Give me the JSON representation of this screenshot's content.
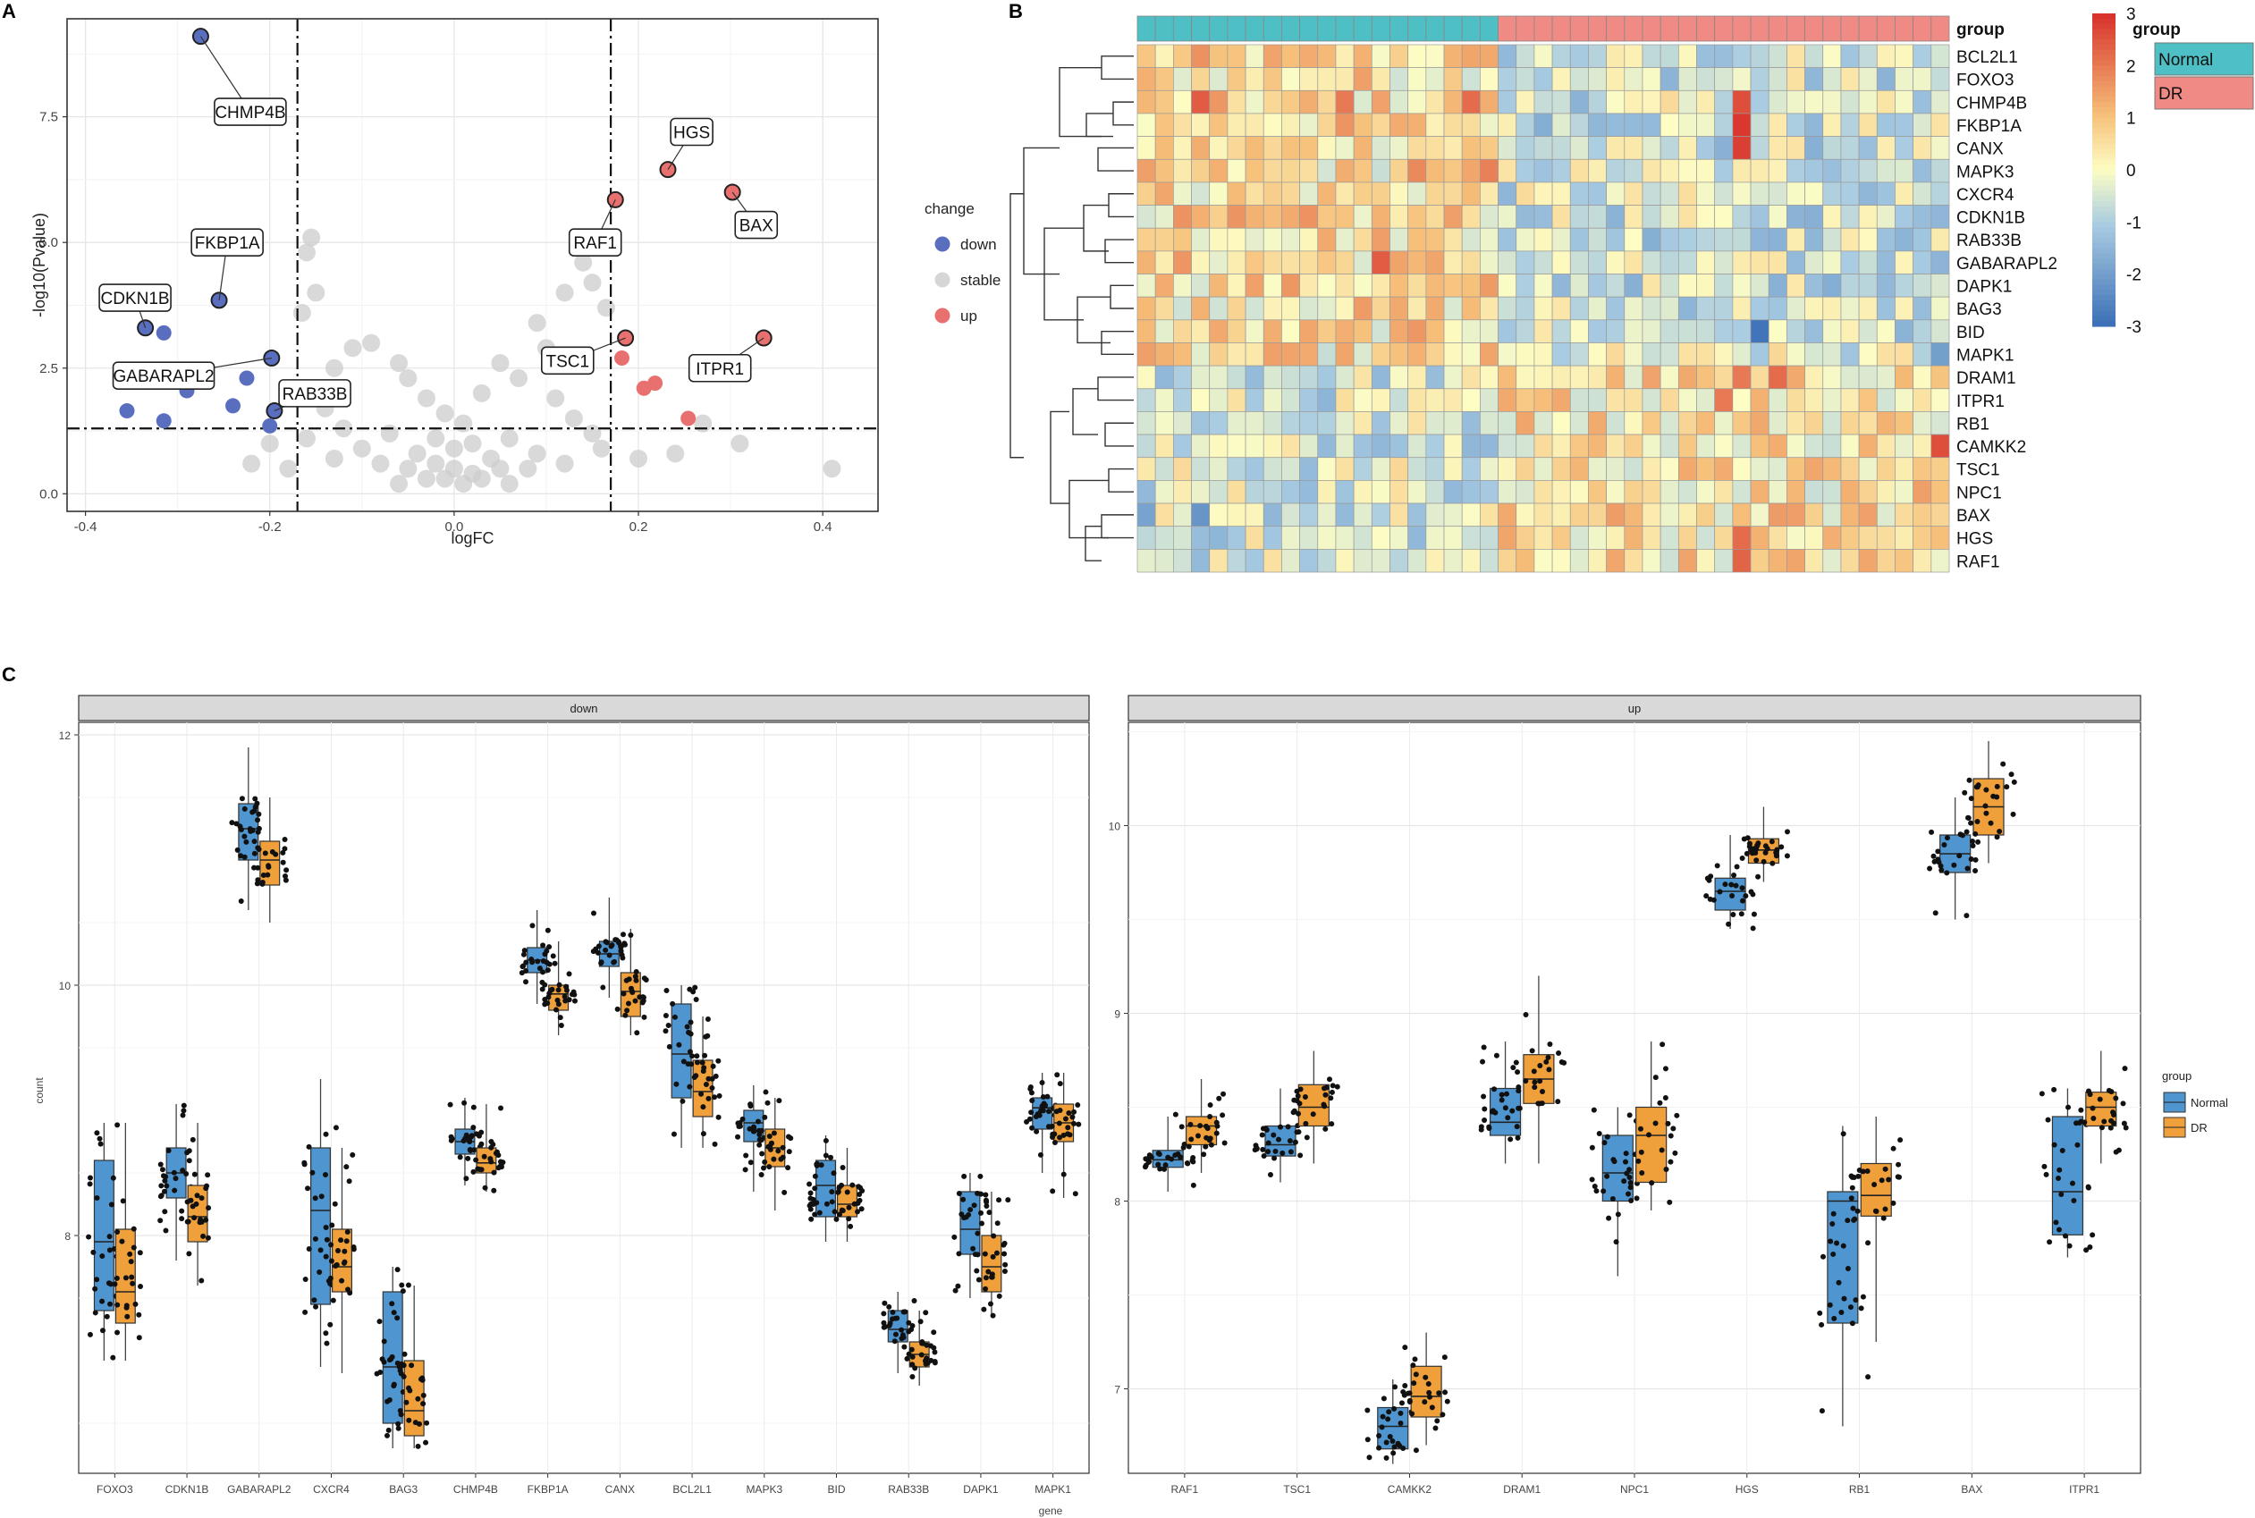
{
  "panels": {
    "a": "A",
    "b": "B",
    "c": "C"
  },
  "chart_data": [
    {
      "type": "scatter",
      "panel": "A",
      "title": "",
      "xlabel": "logFC",
      "ylabel": "-log10(Pvalue)",
      "xlim": [
        -0.4,
        0.45
      ],
      "ylim": [
        -0.3,
        9.4
      ],
      "x_ticks": [
        "-0.4",
        "-0.2",
        "0.0",
        "0.2",
        "0.4"
      ],
      "y_ticks": [
        "0.0",
        "2.5",
        "5.0",
        "7.5"
      ],
      "thresholds": {
        "logFC": [
          -0.17,
          0.17
        ],
        "neglog10p": 1.3
      },
      "legend": {
        "title": "change",
        "entries": [
          "down",
          "stable",
          "up"
        ],
        "position": "right"
      },
      "colors": {
        "down": "#5a6ec0",
        "stable": "#cccccc",
        "up": "#e8706f"
      },
      "down_points": [
        {
          "x": -0.275,
          "y": 9.1,
          "label": "CHMP4B"
        },
        {
          "x": -0.255,
          "y": 3.85,
          "label": "FKBP1A"
        },
        {
          "x": -0.335,
          "y": 3.3,
          "label": "CDKN1B"
        },
        {
          "x": -0.198,
          "y": 2.7,
          "label": "GABARAPL2"
        },
        {
          "x": -0.195,
          "y": 1.65,
          "label": "RAB33B"
        },
        {
          "x": -0.315,
          "y": 3.2
        },
        {
          "x": -0.29,
          "y": 2.05
        },
        {
          "x": -0.355,
          "y": 1.65
        },
        {
          "x": -0.315,
          "y": 1.45
        },
        {
          "x": -0.24,
          "y": 1.75
        },
        {
          "x": -0.225,
          "y": 2.3
        },
        {
          "x": -0.2,
          "y": 1.35
        }
      ],
      "up_points": [
        {
          "x": 0.232,
          "y": 6.45,
          "label": "HGS"
        },
        {
          "x": 0.302,
          "y": 6.0,
          "label": "BAX"
        },
        {
          "x": 0.175,
          "y": 5.85,
          "label": "RAF1"
        },
        {
          "x": 0.186,
          "y": 3.1,
          "label": "TSC1"
        },
        {
          "x": 0.336,
          "y": 3.1,
          "label": "ITPR1"
        },
        {
          "x": 0.182,
          "y": 2.7
        },
        {
          "x": 0.218,
          "y": 2.2
        },
        {
          "x": 0.206,
          "y": 2.1
        },
        {
          "x": 0.254,
          "y": 1.5
        }
      ],
      "stable_points": [
        {
          "x": -0.155,
          "y": 5.1
        },
        {
          "x": -0.16,
          "y": 4.8
        },
        {
          "x": -0.15,
          "y": 4.0
        },
        {
          "x": -0.165,
          "y": 3.6
        },
        {
          "x": 0.14,
          "y": 4.6
        },
        {
          "x": 0.15,
          "y": 4.2
        },
        {
          "x": 0.12,
          "y": 4.0
        },
        {
          "x": 0.165,
          "y": 3.7
        },
        {
          "x": 0.09,
          "y": 3.4
        },
        {
          "x": 0.1,
          "y": 2.9
        },
        {
          "x": -0.09,
          "y": 3.0
        },
        {
          "x": -0.06,
          "y": 2.6
        },
        {
          "x": -0.11,
          "y": 2.9
        },
        {
          "x": -0.13,
          "y": 2.5
        },
        {
          "x": 0.05,
          "y": 2.6
        },
        {
          "x": 0.07,
          "y": 2.3
        },
        {
          "x": -0.05,
          "y": 2.3
        },
        {
          "x": 0.03,
          "y": 2.0
        },
        {
          "x": -0.03,
          "y": 1.9
        },
        {
          "x": -0.01,
          "y": 1.6
        },
        {
          "x": 0.01,
          "y": 1.4
        },
        {
          "x": 0.11,
          "y": 1.9
        },
        {
          "x": 0.13,
          "y": 1.5
        },
        {
          "x": -0.14,
          "y": 1.7
        },
        {
          "x": -0.12,
          "y": 1.3
        },
        {
          "x": 0.15,
          "y": 1.2
        },
        {
          "x": -0.16,
          "y": 1.1
        },
        {
          "x": 0.16,
          "y": 0.9
        },
        {
          "x": -0.07,
          "y": 1.2
        },
        {
          "x": 0.06,
          "y": 1.1
        },
        {
          "x": -0.1,
          "y": 0.9
        },
        {
          "x": 0.09,
          "y": 0.8
        },
        {
          "x": -0.04,
          "y": 0.8
        },
        {
          "x": 0.04,
          "y": 0.7
        },
        {
          "x": -0.02,
          "y": 0.6
        },
        {
          "x": 0.0,
          "y": 0.5
        },
        {
          "x": 0.02,
          "y": 0.4
        },
        {
          "x": -0.01,
          "y": 0.3
        },
        {
          "x": 0.01,
          "y": 0.2
        },
        {
          "x": -0.03,
          "y": 0.3
        },
        {
          "x": 0.03,
          "y": 0.3
        },
        {
          "x": -0.05,
          "y": 0.5
        },
        {
          "x": 0.05,
          "y": 0.5
        },
        {
          "x": -0.08,
          "y": 0.6
        },
        {
          "x": 0.08,
          "y": 0.5
        },
        {
          "x": -0.13,
          "y": 0.7
        },
        {
          "x": 0.12,
          "y": 0.6
        },
        {
          "x": -0.18,
          "y": 0.5
        },
        {
          "x": 0.2,
          "y": 0.7
        },
        {
          "x": 0.24,
          "y": 0.8
        },
        {
          "x": -0.22,
          "y": 0.6
        },
        {
          "x": 0.27,
          "y": 1.4
        },
        {
          "x": 0.31,
          "y": 1.0
        },
        {
          "x": 0.41,
          "y": 0.5
        },
        {
          "x": -0.2,
          "y": 1.0
        },
        {
          "x": 0.0,
          "y": 0.9
        },
        {
          "x": -0.02,
          "y": 1.1
        },
        {
          "x": 0.02,
          "y": 1.0
        },
        {
          "x": -0.06,
          "y": 0.2
        },
        {
          "x": 0.06,
          "y": 0.2
        }
      ]
    },
    {
      "type": "heatmap",
      "panel": "B",
      "annotation_title": "group",
      "legend": {
        "title": "group",
        "entries": [
          "Normal",
          "DR"
        ],
        "position": "right"
      },
      "group_colors": {
        "Normal": "#4ebfc4",
        "DR": "#f08a84"
      },
      "color_scale": {
        "min": -3,
        "max": 3,
        "ticks": [
          "3",
          "2",
          "1",
          "0",
          "-1",
          "-2",
          "-3"
        ],
        "low": "#3b6fb6",
        "mid": "#fdfdc4",
        "high": "#d7302b"
      },
      "n_normal": 20,
      "n_dr": 25,
      "genes": [
        "BCL2L1",
        "FOXO3",
        "CHMP4B",
        "FKBP1A",
        "CANX",
        "MAPK3",
        "CXCR4",
        "CDKN1B",
        "RAB33B",
        "GABARAPL2",
        "DAPK1",
        "BAG3",
        "BID",
        "MAPK1",
        "DRAM1",
        "ITPR1",
        "RB1",
        "CAMKK2",
        "TSC1",
        "NPC1",
        "BAX",
        "HGS",
        "RAF1"
      ],
      "row_bias": [
        0.6,
        0.5,
        0.5,
        0.6,
        0.6,
        0.4,
        0.5,
        0.6,
        0.6,
        0.6,
        0.6,
        0.5,
        0.5,
        0.4,
        -0.5,
        -0.5,
        -0.5,
        -0.4,
        -0.4,
        -0.4,
        -0.5,
        -0.5,
        -0.5
      ],
      "notes": "row-scaled expression z-scores; down-regulated genes higher in Normal, up-regulated genes higher in DR"
    },
    {
      "type": "box",
      "panel": "C",
      "xlabel": "gene",
      "ylabel": "count",
      "legend": {
        "title": "group",
        "entries": [
          "Normal",
          "DR"
        ],
        "position": "right"
      },
      "colors": {
        "Normal": "#4f95cf",
        "DR": "#f0a03b"
      },
      "facets": [
        {
          "name": "down",
          "ylim": [
            6.1,
            12.1
          ],
          "y_ticks": [
            "8",
            "10",
            "12"
          ],
          "genes": [
            {
              "gene": "FOXO3",
              "Normal": [
                7.0,
                7.4,
                7.95,
                8.6,
                8.9
              ],
              "DR": [
                7.0,
                7.3,
                7.55,
                8.05,
                8.9
              ]
            },
            {
              "gene": "CDKN1B",
              "Normal": [
                7.8,
                8.3,
                8.5,
                8.7,
                9.05
              ],
              "DR": [
                7.6,
                7.95,
                8.15,
                8.4,
                8.9
              ]
            },
            {
              "gene": "GABARAPL2",
              "Normal": [
                10.6,
                11.0,
                11.25,
                11.45,
                11.9
              ],
              "DR": [
                10.5,
                10.8,
                11.0,
                11.15,
                11.5
              ]
            },
            {
              "gene": "CXCR4",
              "Normal": [
                6.95,
                7.45,
                8.2,
                8.7,
                9.25
              ],
              "DR": [
                6.9,
                7.55,
                7.75,
                8.05,
                8.7
              ]
            },
            {
              "gene": "BAG3",
              "Normal": [
                6.3,
                6.5,
                6.95,
                7.55,
                7.75
              ],
              "DR": [
                6.3,
                6.4,
                6.6,
                7.0,
                7.6
              ]
            },
            {
              "gene": "CHMP4B",
              "Normal": [
                8.4,
                8.65,
                8.75,
                8.85,
                9.1
              ],
              "DR": [
                8.35,
                8.5,
                8.58,
                8.7,
                9.05
              ]
            },
            {
              "gene": "FKBP1A",
              "Normal": [
                9.85,
                10.1,
                10.2,
                10.3,
                10.6
              ],
              "DR": [
                9.6,
                9.8,
                9.93,
                10.0,
                10.35
              ]
            },
            {
              "gene": "CANX",
              "Normal": [
                9.9,
                10.15,
                10.25,
                10.35,
                10.7
              ],
              "DR": [
                9.6,
                9.75,
                9.95,
                10.1,
                10.45
              ]
            },
            {
              "gene": "BCL2L1",
              "Normal": [
                8.7,
                9.1,
                9.45,
                9.85,
                10.0
              ],
              "DR": [
                8.7,
                8.95,
                9.15,
                9.4,
                9.75
              ]
            },
            {
              "gene": "MAPK3",
              "Normal": [
                8.35,
                8.75,
                8.9,
                9.0,
                9.2
              ],
              "DR": [
                8.2,
                8.55,
                8.7,
                8.85,
                9.1
              ]
            },
            {
              "gene": "BID",
              "Normal": [
                7.95,
                8.15,
                8.4,
                8.6,
                8.8
              ],
              "DR": [
                7.95,
                8.15,
                8.25,
                8.4,
                8.7
              ]
            },
            {
              "gene": "RAB33B",
              "Normal": [
                6.9,
                7.15,
                7.25,
                7.4,
                7.55
              ],
              "DR": [
                6.8,
                6.95,
                7.05,
                7.15,
                7.4
              ]
            },
            {
              "gene": "DAPK1",
              "Normal": [
                7.5,
                7.85,
                8.05,
                8.35,
                8.5
              ],
              "DR": [
                7.35,
                7.55,
                7.75,
                8.0,
                8.35
              ]
            },
            {
              "gene": "MAPK1",
              "Normal": [
                8.5,
                8.85,
                9.02,
                9.1,
                9.3
              ],
              "DR": [
                8.3,
                8.75,
                8.9,
                9.05,
                9.3
              ]
            }
          ]
        },
        {
          "name": "up",
          "ylim": [
            6.55,
            10.55
          ],
          "y_ticks": [
            "7",
            "8",
            "9",
            "10"
          ],
          "genes": [
            {
              "gene": "RAF1",
              "Normal": [
                8.05,
                8.18,
                8.22,
                8.27,
                8.45
              ],
              "DR": [
                8.15,
                8.3,
                8.4,
                8.45,
                8.65
              ]
            },
            {
              "gene": "TSC1",
              "Normal": [
                8.1,
                8.24,
                8.3,
                8.4,
                8.6
              ],
              "DR": [
                8.2,
                8.4,
                8.5,
                8.62,
                8.8
              ]
            },
            {
              "gene": "CAMKK2",
              "Normal": [
                6.6,
                6.68,
                6.8,
                6.9,
                7.05
              ],
              "DR": [
                6.7,
                6.85,
                6.96,
                7.12,
                7.3
              ]
            },
            {
              "gene": "DRAM1",
              "Normal": [
                8.2,
                8.35,
                8.42,
                8.6,
                8.85
              ],
              "DR": [
                8.2,
                8.52,
                8.65,
                8.78,
                9.2
              ]
            },
            {
              "gene": "NPC1",
              "Normal": [
                7.6,
                8.0,
                8.15,
                8.35,
                8.5
              ],
              "DR": [
                7.95,
                8.1,
                8.35,
                8.5,
                8.85
              ]
            },
            {
              "gene": "HGS",
              "Normal": [
                9.45,
                9.55,
                9.65,
                9.72,
                9.95
              ],
              "DR": [
                9.7,
                9.8,
                9.87,
                9.93,
                10.1
              ]
            },
            {
              "gene": "RB1",
              "Normal": [
                6.8,
                7.35,
                8.0,
                8.05,
                8.4
              ],
              "DR": [
                7.25,
                7.92,
                8.03,
                8.2,
                8.45
              ]
            },
            {
              "gene": "BAX",
              "Normal": [
                9.5,
                9.75,
                9.85,
                9.95,
                10.15
              ],
              "DR": [
                9.8,
                9.95,
                10.1,
                10.25,
                10.45
              ]
            },
            {
              "gene": "ITPR1",
              "Normal": [
                7.7,
                7.82,
                8.05,
                8.45,
                8.6
              ],
              "DR": [
                8.2,
                8.4,
                8.5,
                8.58,
                8.8
              ]
            }
          ]
        }
      ]
    }
  ]
}
